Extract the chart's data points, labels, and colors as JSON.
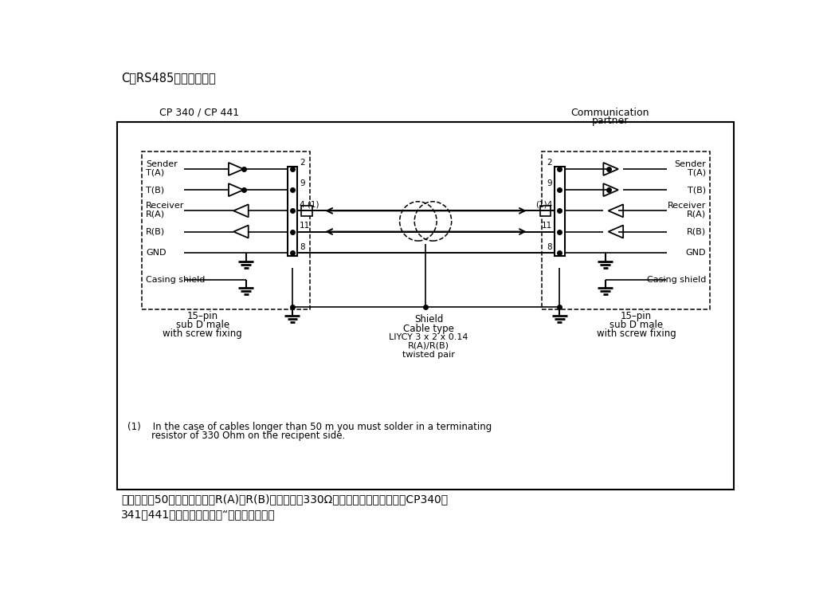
{
  "title_top": "C：RS485的连接定义：",
  "left_title": "CP 340 / CP 441",
  "right_title_line1": "Communication",
  "right_title_line2": "partner",
  "left_labels": [
    "Sender",
    "T(A)",
    "T(B)",
    "Receiver",
    "R(A)",
    "R(B)",
    "GND",
    "Casing shield"
  ],
  "right_labels": [
    "Sender",
    "T(A)",
    "T(B)",
    "Receiver",
    "R(A)",
    "R(B)",
    "GND",
    "Casing shield"
  ],
  "pin_left": [
    "2",
    "9",
    "4 (1)",
    "11",
    "8"
  ],
  "pin_right": [
    "2",
    "9",
    "(1)4",
    "11",
    "8"
  ],
  "bottom_left": "15–pin\nsub D male\nwith screw fixing",
  "bottom_right": "15–pin\nsub D male\nwith screw fixing",
  "center_label1": "Shield",
  "center_label2": "Cable type",
  "center_label3": "LIYCY 3 x 2 x 0.14",
  "center_label4": "R(A)/R(B)",
  "center_label5": "twisted pair",
  "footnote1": "(1)    In the case of cables longer than 50 m you must solder in a terminating",
  "footnote2": "        resistor of 330 Ohm on the recipent side.",
  "bottom_text1": "电缆长度蔆50米时在接收端（R(A)和R(B)之间）加入330Ω电阻。如果接线错误，在CP340、",
  "bottom_text2": "341、441硬件诊断中会提出“端口：接收线断",
  "bg_color": "#ffffff"
}
